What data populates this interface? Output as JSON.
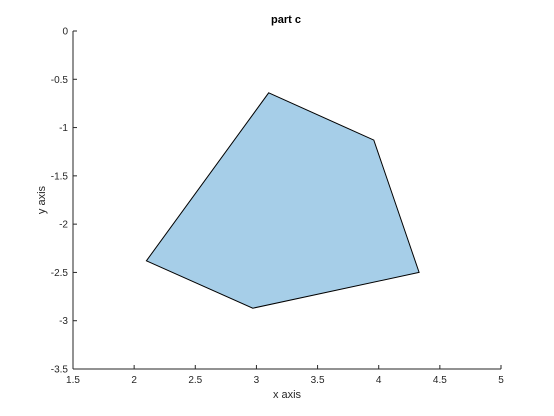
{
  "chart_data": {
    "type": "area",
    "title": "part c",
    "xlabel": "x axis",
    "ylabel": "y axis",
    "xlim": [
      1.5,
      5
    ],
    "ylim": [
      -3.5,
      0
    ],
    "xticks": [
      1.5,
      2,
      2.5,
      3,
      3.5,
      4,
      4.5,
      5
    ],
    "xtick_labels": [
      "1.5",
      "2",
      "2.5",
      "3",
      "3.5",
      "4",
      "4.5",
      "5"
    ],
    "yticks": [
      0,
      -0.5,
      -1,
      -1.5,
      -2,
      -2.5,
      -3,
      -3.5
    ],
    "ytick_labels": [
      "0",
      "-0.5",
      "-1",
      "-1.5",
      "-2",
      "-2.5",
      "-3",
      "-3.5"
    ],
    "grid": false,
    "polygon": {
      "fill_color": "#a6cee8",
      "edge_color": "#000000",
      "vertices": [
        {
          "x": 3.1,
          "y": -0.64
        },
        {
          "x": 3.96,
          "y": -1.13
        },
        {
          "x": 4.33,
          "y": -2.5
        },
        {
          "x": 2.97,
          "y": -2.87
        },
        {
          "x": 2.1,
          "y": -2.38
        }
      ]
    }
  }
}
